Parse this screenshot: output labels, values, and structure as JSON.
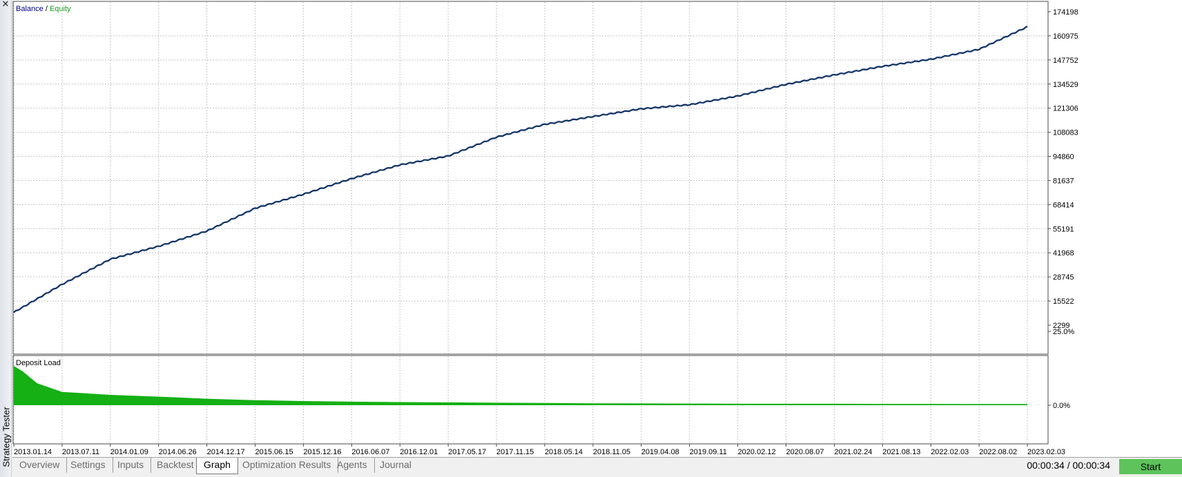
{
  "window": {
    "panel_title": "Strategy Tester",
    "close_glyph": "✕"
  },
  "chart": {
    "legend_balance": "Balance",
    "legend_separator": " / ",
    "legend_equity": "Equity",
    "deposit_label": "Deposit Load",
    "colors": {
      "balance": "#00007f",
      "equity": "#1e9b1e",
      "deposit_fill": "#14b014",
      "grid": "#c4c4c4"
    }
  },
  "chart_data": [
    {
      "type": "line",
      "legend": [
        "Balance",
        "Equity"
      ],
      "y_ticks": [
        "174198",
        "160975",
        "147752",
        "134529",
        "121306",
        "108083",
        "94860",
        "81637",
        "68414",
        "55191",
        "41968",
        "28745",
        "15522",
        "2299"
      ],
      "ylim": [
        2299,
        174198
      ],
      "x_ticks": [
        "2013.01.14",
        "2013.07.11",
        "2014.01.09",
        "2014.06.26",
        "2014.12.17",
        "2015.06.15",
        "2015.12.16",
        "2016.06.07",
        "2016.12.01",
        "2017.05.17",
        "2017.11.15",
        "2018.05.14",
        "2018.11.05",
        "2019.04.08",
        "2019.09.11",
        "2020.02.12",
        "2020.08.07",
        "2021.02.24",
        "2021.08.13",
        "2022.02.03",
        "2022.08.02",
        "2023.02.03"
      ],
      "grid": true,
      "legend_position": "top-left",
      "series": [
        {
          "name": "Balance",
          "x": [
            "2013.01.14",
            "2013.07.11",
            "2014.01.09",
            "2014.06.26",
            "2014.12.17",
            "2015.06.15",
            "2015.12.16",
            "2016.06.07",
            "2016.12.01",
            "2017.05.17",
            "2017.11.15",
            "2018.05.14",
            "2018.11.05",
            "2019.04.08",
            "2019.09.11",
            "2020.02.12",
            "2020.08.07",
            "2021.02.24",
            "2021.08.13",
            "2022.02.03",
            "2022.08.02",
            "2023.02.03"
          ],
          "values": [
            9300,
            25000,
            38000,
            45800,
            54000,
            66000,
            74500,
            82500,
            90000,
            95500,
            105000,
            112500,
            117000,
            120500,
            123500,
            128000,
            134000,
            140000,
            144000,
            148000,
            154000,
            165500
          ]
        },
        {
          "name": "Equity",
          "x": [
            "2013.01.14",
            "2013.07.11",
            "2014.01.09",
            "2014.06.26",
            "2014.12.17",
            "2015.06.15",
            "2015.12.16",
            "2016.06.07",
            "2016.12.01",
            "2017.05.17",
            "2017.11.15",
            "2018.05.14",
            "2018.11.05",
            "2019.04.08",
            "2019.09.11",
            "2020.02.12",
            "2020.08.07",
            "2021.02.24",
            "2021.08.13",
            "2022.02.03",
            "2022.08.02",
            "2023.02.03"
          ],
          "values": [
            9300,
            25000,
            38000,
            45800,
            54000,
            66000,
            74500,
            82500,
            90000,
            95500,
            105000,
            112500,
            117000,
            120500,
            123500,
            128000,
            134000,
            140000,
            144000,
            148000,
            154000,
            165500
          ]
        }
      ]
    },
    {
      "type": "area",
      "title": "Deposit Load",
      "y_ticks": [
        "25.0%",
        "0.0%"
      ],
      "ylim": [
        0,
        25
      ],
      "x": [
        "2013.01.14",
        "2013.02.15",
        "2013.04.10",
        "2013.07.11",
        "2014.01.09",
        "2014.06.26",
        "2014.12.17",
        "2015.06.15",
        "2015.12.16",
        "2016.06.07",
        "2016.12.01",
        "2017.05.17",
        "2017.11.15",
        "2018.05.14",
        "2018.11.05",
        "2019.04.08",
        "2019.09.11",
        "2020.02.12",
        "2020.08.07",
        "2021.02.24",
        "2021.08.13",
        "2022.02.03",
        "2022.08.02",
        "2023.02.03"
      ],
      "series": [
        {
          "values": [
            13.3,
            11.5,
            7.4,
            4.5,
            3.5,
            2.9,
            2.2,
            1.7,
            1.4,
            1.2,
            1.05,
            0.95,
            0.85,
            0.75,
            0.65,
            0.6,
            0.55,
            0.5,
            0.5,
            0.5,
            0.45,
            0.45,
            0.4,
            0.4
          ]
        }
      ]
    }
  ],
  "tabs": [
    {
      "label": "Overview",
      "active": false
    },
    {
      "label": "Settings",
      "active": false
    },
    {
      "label": "Inputs",
      "active": false
    },
    {
      "label": "Backtest",
      "active": false
    },
    {
      "label": "Graph",
      "active": true
    },
    {
      "label": "Optimization Results",
      "active": false
    },
    {
      "label": "Agents",
      "active": false
    },
    {
      "label": "Journal",
      "active": false
    }
  ],
  "status": {
    "timer": "00:00:34 / 00:00:34",
    "start_label": "Start",
    "start_color": "#5ec35a"
  }
}
